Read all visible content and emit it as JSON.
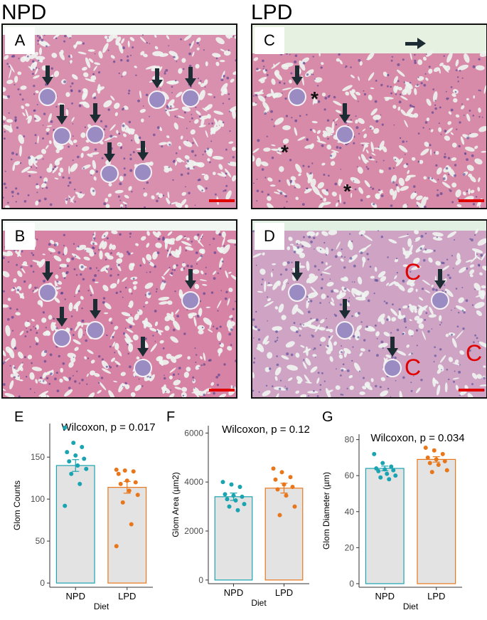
{
  "groups": {
    "left": "NPD",
    "right": "LPD"
  },
  "panels": [
    {
      "id": "A",
      "label": "A",
      "group": "NPD",
      "arrows": 7
    },
    {
      "id": "B",
      "label": "B",
      "group": "NPD",
      "arrows": 5
    },
    {
      "id": "C",
      "label": "C",
      "group": "LPD",
      "arrows": 2,
      "asterisks": [
        "*",
        "*",
        "*"
      ]
    },
    {
      "id": "D",
      "label": "D",
      "group": "LPD",
      "arrows": 4,
      "c_marks": [
        "C",
        "C",
        "C"
      ]
    }
  ],
  "colors": {
    "npd": "#1aa3b0",
    "lpd": "#e8771c",
    "bar_fill": "#e3e3e3",
    "scale_bar": "#e00000"
  },
  "chart_data": [
    {
      "letter": "E",
      "type": "bar",
      "title": "Wilcoxon, p = 0.017",
      "xlabel": "Diet",
      "ylabel": "Glom Counts",
      "categories": [
        "NPD",
        "LPD"
      ],
      "means": [
        140,
        114
      ],
      "sem": [
        7,
        7
      ],
      "ylim": [
        -5,
        190
      ],
      "yticks": [
        0,
        50,
        100,
        150
      ],
      "points": [
        [
          185,
          167,
          162,
          156,
          152,
          148,
          145,
          140,
          136,
          130,
          118,
          92
        ],
        [
          135,
          134,
          133,
          130,
          122,
          120,
          118,
          110,
          105,
          96,
          70,
          44
        ]
      ]
    },
    {
      "letter": "F",
      "type": "bar",
      "title": "Wilcoxon, p = 0.12",
      "xlabel": "Diet",
      "ylabel": "Glom Area (µm2)",
      "categories": [
        "NPD",
        "LPD"
      ],
      "means": [
        3400,
        3750
      ],
      "sem": [
        150,
        200
      ],
      "ylim": [
        -150,
        6300
      ],
      "yticks": [
        0,
        2000,
        4000,
        6000
      ],
      "points": [
        [
          4000,
          3900,
          3800,
          3500,
          3450,
          3400,
          3300,
          3250,
          3100,
          3000,
          2850
        ],
        [
          4550,
          4400,
          4200,
          4100,
          3900,
          3800,
          3700,
          3450,
          3000,
          2650
        ]
      ]
    },
    {
      "letter": "G",
      "type": "bar",
      "title": "Wilcoxon, p = 0.034",
      "xlabel": "Diet",
      "ylabel": "Glom Diameter (µm)",
      "categories": [
        "NPD",
        "LPD"
      ],
      "means": [
        64,
        69
      ],
      "sem": [
        1.3,
        1.5
      ],
      "ylim": [
        -2,
        83
      ],
      "yticks": [
        0,
        20,
        40,
        60,
        80
      ],
      "points": [
        [
          72,
          67,
          65,
          64,
          63.5,
          63,
          62.5,
          61,
          60,
          59,
          58
        ],
        [
          75.5,
          74,
          72,
          70,
          69,
          68,
          67,
          66,
          63,
          62
        ]
      ]
    }
  ]
}
